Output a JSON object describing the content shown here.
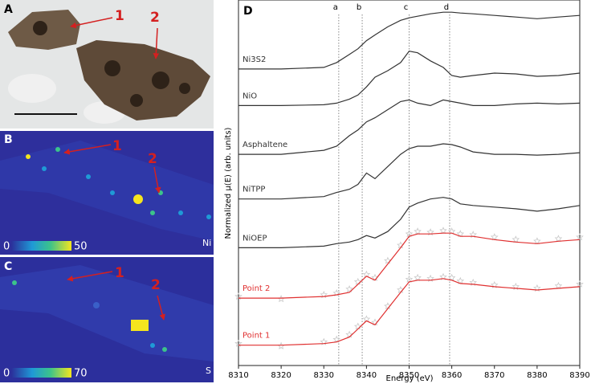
{
  "image_panels": [
    {
      "label": "A",
      "markers": [
        "1",
        "2"
      ]
    },
    {
      "label": "B",
      "markers": [
        "1",
        "2"
      ],
      "colorbar_min": "0",
      "colorbar_max": "50",
      "element": "Ni"
    },
    {
      "label": "C",
      "markers": [
        "1",
        "2"
      ],
      "colorbar_min": "0",
      "colorbar_max": "70",
      "element": "S"
    }
  ],
  "chart_data": {
    "type": "line",
    "panel_label": "D",
    "x_label": "Energy (eV)",
    "y_label": "Normalized μ(E) (arb. units)",
    "xlim": [
      8310,
      8390
    ],
    "xticks": [
      8310,
      8320,
      8330,
      8340,
      8350,
      8360,
      8370,
      8380,
      8390
    ],
    "ylim": [
      0,
      45
    ],
    "x": [
      8310,
      8320,
      8330,
      8333,
      8336,
      8338,
      8340,
      8342,
      8345,
      8348,
      8350,
      8352,
      8355,
      8358,
      8360,
      8362,
      8365,
      8370,
      8375,
      8380,
      8385,
      8390
    ],
    "annotations": [
      {
        "label": "a",
        "x": 8333.5
      },
      {
        "label": "b",
        "x": 8339
      },
      {
        "label": "c",
        "x": 8350
      },
      {
        "label": "d",
        "x": 8359.5
      }
    ],
    "series": [
      {
        "name": "Ni3S2",
        "color": "#333333",
        "values": [
          36.5,
          36.5,
          36.7,
          37.3,
          38.3,
          39,
          40,
          40.7,
          41.7,
          42.5,
          42.8,
          43,
          43.3,
          43.5,
          43.5,
          43.4,
          43.3,
          43.1,
          42.9,
          42.7,
          42.9,
          43.1
        ]
      },
      {
        "name": "NiO",
        "color": "#333333",
        "values": [
          32,
          32,
          32.1,
          32.3,
          32.8,
          33.3,
          34.3,
          35.5,
          36.3,
          37.3,
          38.7,
          38.5,
          37.5,
          36.7,
          35.7,
          35.5,
          35.7,
          36,
          35.9,
          35.6,
          35.7,
          36
        ]
      },
      {
        "name": "Asphaltene",
        "color": "#333333",
        "values": [
          26,
          26,
          26.5,
          27,
          28.3,
          29,
          30,
          30.5,
          31.5,
          32.5,
          32.7,
          32.3,
          32,
          32.7,
          32.5,
          32.3,
          32,
          32,
          32.2,
          32.3,
          32.2,
          32.3
        ]
      },
      {
        "name": "NiTPP",
        "color": "#333333",
        "values": [
          20.5,
          20.5,
          20.8,
          21.3,
          21.7,
          22.3,
          23.7,
          23,
          24.5,
          26,
          26.7,
          27,
          27,
          27.3,
          27.2,
          26.9,
          26.3,
          26,
          26,
          25.9,
          26,
          26.2
        ]
      },
      {
        "name": "NiOEP",
        "color": "#333333",
        "values": [
          14.5,
          14.5,
          14.7,
          15,
          15.2,
          15.5,
          16,
          15.7,
          16.5,
          18,
          19.5,
          20,
          20.5,
          20.7,
          20.5,
          19.9,
          19.7,
          19.5,
          19.3,
          19,
          19.3,
          19.7
        ]
      },
      {
        "color": "#c8c8c8",
        "marker": "star",
        "values": [
          8.5,
          8.2,
          8.7,
          8.9,
          9.4,
          10.3,
          11.2,
          10.8,
          12.9,
          14.8,
          16.2,
          16.5,
          16.4,
          16.6,
          16.5,
          16.2,
          16.1,
          15.8,
          15.5,
          15.3,
          15.6,
          15.8
        ]
      },
      {
        "name": "Point 2",
        "color": "#e03030",
        "values": [
          8.3,
          8.3,
          8.5,
          8.7,
          9,
          10,
          11,
          10.5,
          12.5,
          14.5,
          15.9,
          16.2,
          16.2,
          16.3,
          16.3,
          15.9,
          15.9,
          15.5,
          15.2,
          15,
          15.3,
          15.5
        ]
      },
      {
        "color": "#c8c8c8",
        "marker": "star",
        "values": [
          2.7,
          2.4,
          2.9,
          3.2,
          3.8,
          4.8,
          5.7,
          5.3,
          7.3,
          9.3,
          10.6,
          10.8,
          10.7,
          10.9,
          10.8,
          10.4,
          10.2,
          9.9,
          9.7,
          9.5,
          9.8,
          10
        ]
      },
      {
        "name": "Point 1",
        "color": "#e03030",
        "values": [
          2.5,
          2.5,
          2.7,
          2.9,
          3.5,
          4.5,
          5.5,
          5,
          7,
          9,
          10.3,
          10.5,
          10.5,
          10.7,
          10.5,
          10.1,
          10,
          9.7,
          9.5,
          9.3,
          9.5,
          9.7
        ]
      }
    ]
  }
}
